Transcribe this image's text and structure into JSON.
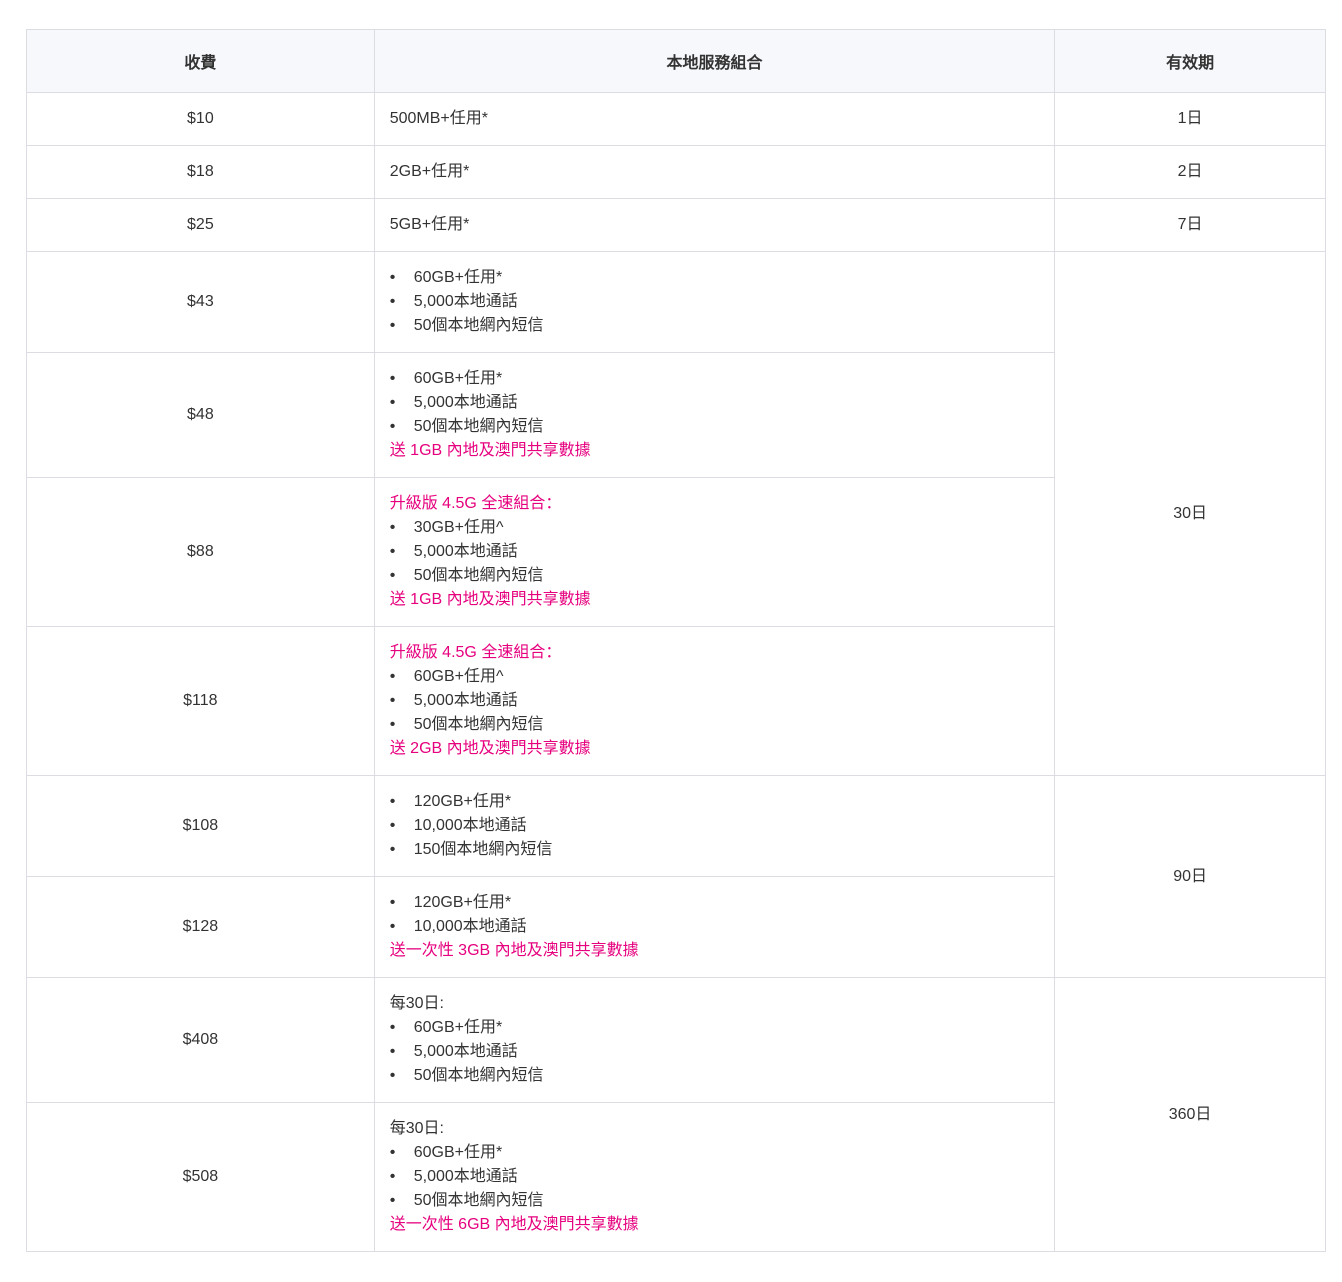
{
  "header": {
    "price": "收費",
    "package": "本地服務組合",
    "validity": "有效期"
  },
  "accent_color": "#e6007e",
  "rows": [
    {
      "price": "$10",
      "lines": [
        {
          "type": "plain",
          "text": "500MB+任用*"
        }
      ],
      "validity": "1日",
      "validity_span": 1
    },
    {
      "price": "$18",
      "lines": [
        {
          "type": "plain",
          "text": "2GB+任用*"
        }
      ],
      "validity": "2日",
      "validity_span": 1
    },
    {
      "price": "$25",
      "lines": [
        {
          "type": "plain",
          "text": "5GB+任用*"
        }
      ],
      "validity": "7日",
      "validity_span": 1
    },
    {
      "price": "$43",
      "lines": [
        {
          "type": "bullet",
          "text": "60GB+任用*"
        },
        {
          "type": "bullet",
          "text": "5,000本地通話"
        },
        {
          "type": "bullet",
          "text": "50個本地網內短信"
        }
      ],
      "validity": "30日",
      "validity_span": 4
    },
    {
      "price": "$48",
      "lines": [
        {
          "type": "bullet",
          "text": "60GB+任用*"
        },
        {
          "type": "bullet",
          "text": "5,000本地通話"
        },
        {
          "type": "bullet",
          "text": "50個本地網內短信"
        },
        {
          "type": "pink",
          "text": "送 1GB 內地及澳門共享數據"
        }
      ]
    },
    {
      "price": "$88",
      "lines": [
        {
          "type": "pink",
          "text": "升級版 4.5G 全速組合："
        },
        {
          "type": "bullet",
          "text": "30GB+任用^"
        },
        {
          "type": "bullet",
          "text": "5,000本地通話"
        },
        {
          "type": "bullet",
          "text": "50個本地網內短信"
        },
        {
          "type": "pink",
          "text": "送 1GB 內地及澳門共享數據"
        }
      ]
    },
    {
      "price": "$118",
      "lines": [
        {
          "type": "pink",
          "text": "升級版 4.5G 全速組合："
        },
        {
          "type": "bullet",
          "text": "60GB+任用^"
        },
        {
          "type": "bullet",
          "text": "5,000本地通話"
        },
        {
          "type": "bullet",
          "text": "50個本地網內短信"
        },
        {
          "type": "pink",
          "text": "送 2GB 內地及澳門共享數據"
        }
      ]
    },
    {
      "price": "$108",
      "lines": [
        {
          "type": "bullet",
          "text": "120GB+任用*"
        },
        {
          "type": "bullet",
          "text": "10,000本地通話"
        },
        {
          "type": "bullet",
          "text": "150個本地網內短信"
        }
      ],
      "validity": "90日",
      "validity_span": 2
    },
    {
      "price": "$128",
      "lines": [
        {
          "type": "bullet",
          "text": "120GB+任用*"
        },
        {
          "type": "bullet",
          "text": "10,000本地通話"
        },
        {
          "type": "pink",
          "text": "送一次性 3GB 內地及澳門共享數據"
        }
      ]
    },
    {
      "price": "$408",
      "lines": [
        {
          "type": "plain",
          "text": "每30日:"
        },
        {
          "type": "bullet",
          "text": "60GB+任用*"
        },
        {
          "type": "bullet",
          "text": "5,000本地通話"
        },
        {
          "type": "bullet",
          "text": "50個本地網內短信"
        }
      ],
      "validity": "360日",
      "validity_span": 2
    },
    {
      "price": "$508",
      "lines": [
        {
          "type": "plain",
          "text": "每30日:"
        },
        {
          "type": "bullet",
          "text": "60GB+任用*"
        },
        {
          "type": "bullet",
          "text": "5,000本地通話"
        },
        {
          "type": "bullet",
          "text": "50個本地網內短信"
        },
        {
          "type": "pink",
          "text": "送一次性 6GB 內地及澳門共享數據"
        }
      ]
    }
  ]
}
